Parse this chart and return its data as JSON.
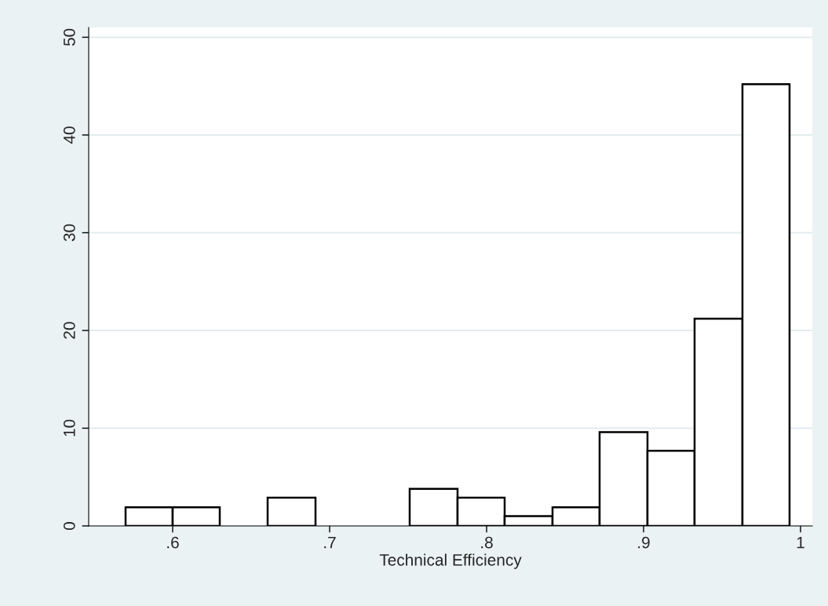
{
  "chart_data": {
    "type": "histogram",
    "xlabel": "Technical Efficiency",
    "bins": [
      0.57,
      0.6,
      0.63,
      0.6605,
      0.691,
      0.751,
      0.7815,
      0.8115,
      0.842,
      0.872,
      0.9025,
      0.9325,
      0.963,
      0.993
    ],
    "values": [
      1.9,
      1.9,
      0,
      2.9,
      0,
      3.8,
      2.9,
      1.0,
      1.9,
      9.6,
      7.7,
      21.2,
      45.2
    ],
    "color": "#ffffff",
    "xlim": [
      0.5465,
      1.0075
    ],
    "xticks": [
      {
        "value": 0.6,
        "label": ".6"
      },
      {
        "value": 0.7,
        "label": ".7"
      },
      {
        "value": 0.8,
        "label": ".8"
      },
      {
        "value": 0.9,
        "label": ".9"
      },
      1
    ],
    "ylim": [
      0,
      51
    ],
    "yticks": [
      0,
      10,
      20,
      30,
      40,
      50
    ],
    "grid": "y"
  }
}
